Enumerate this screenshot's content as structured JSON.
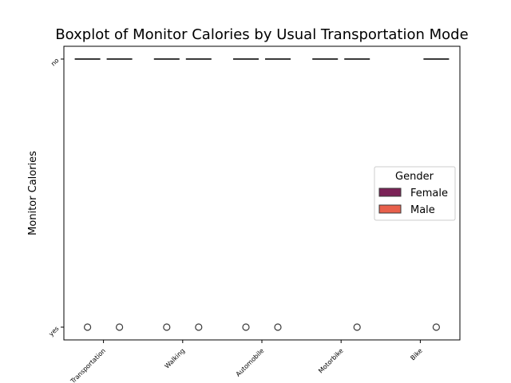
{
  "chart_data": {
    "type": "box",
    "title": "Boxplot of Monitor Calories by Usual Transportation Mode",
    "xlabel": "",
    "ylabel": "Monitor Calories",
    "categories": [
      "Public_Transportation",
      "Walking",
      "Automobile",
      "Motorbike",
      "Bike"
    ],
    "y_categories": [
      "no",
      "yes"
    ],
    "legend": {
      "title": "Gender",
      "placement": "center-right"
    },
    "series": [
      {
        "name": "Female",
        "color": "#7b2257",
        "boxes": [
          {
            "category": "Public_Transportation",
            "q1": "no",
            "median": "no",
            "q3": "no",
            "whisker_low": "no",
            "whisker_high": "no",
            "outliers": [
              "yes"
            ]
          },
          {
            "category": "Walking",
            "q1": "no",
            "median": "no",
            "q3": "no",
            "whisker_low": "no",
            "whisker_high": "no",
            "outliers": [
              "yes"
            ]
          },
          {
            "category": "Automobile",
            "q1": "no",
            "median": "no",
            "q3": "no",
            "whisker_low": "no",
            "whisker_high": "no",
            "outliers": [
              "yes"
            ]
          },
          {
            "category": "Motorbike",
            "q1": "no",
            "median": "no",
            "q3": "no",
            "whisker_low": "no",
            "whisker_high": "no",
            "outliers": []
          }
        ]
      },
      {
        "name": "Male",
        "color": "#e8604c",
        "boxes": [
          {
            "category": "Public_Transportation",
            "q1": "no",
            "median": "no",
            "q3": "no",
            "whisker_low": "no",
            "whisker_high": "no",
            "outliers": [
              "yes"
            ]
          },
          {
            "category": "Walking",
            "q1": "no",
            "median": "no",
            "q3": "no",
            "whisker_low": "no",
            "whisker_high": "no",
            "outliers": [
              "yes"
            ]
          },
          {
            "category": "Automobile",
            "q1": "no",
            "median": "no",
            "q3": "no",
            "whisker_low": "no",
            "whisker_high": "no",
            "outliers": [
              "yes"
            ]
          },
          {
            "category": "Motorbike",
            "q1": "no",
            "median": "no",
            "q3": "no",
            "whisker_low": "no",
            "whisker_high": "no",
            "outliers": [
              "yes"
            ]
          },
          {
            "category": "Bike",
            "q1": "no",
            "median": "no",
            "q3": "no",
            "whisker_low": "no",
            "whisker_high": "no",
            "outliers": [
              "yes"
            ]
          }
        ]
      }
    ],
    "grid": false
  }
}
